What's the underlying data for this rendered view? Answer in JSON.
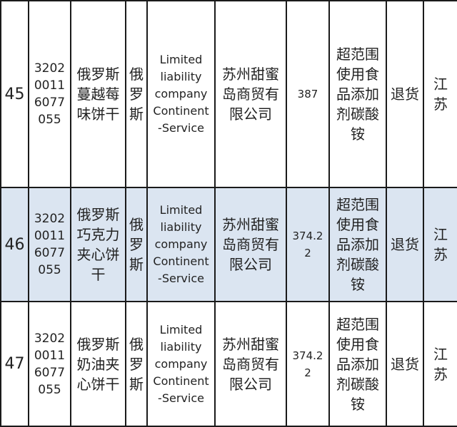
{
  "rows": [
    {
      "no": "45",
      "code": [
        "3202",
        "0011",
        "6077",
        "055"
      ],
      "product": [
        "俄罗斯",
        "蔓越莓",
        "味饼干"
      ],
      "country": [
        "俄",
        "罗",
        "斯"
      ],
      "manufacturer": [
        "Limited",
        "liability",
        "company",
        "Continent",
        "-Service"
      ],
      "importer": [
        "苏州甜蜜",
        "岛商贸有",
        "限公司"
      ],
      "weight": [
        "387"
      ],
      "reason": [
        "超范围",
        "使用食",
        "品添加",
        "剂碳酸",
        "铵"
      ],
      "action": [
        "退货"
      ],
      "port": [
        "江",
        "苏"
      ]
    },
    {
      "no": "46",
      "code": [
        "3202",
        "0011",
        "6077",
        "055"
      ],
      "product": [
        "俄罗斯",
        "巧克力",
        "夹心饼",
        "干"
      ],
      "country": [
        "俄",
        "罗",
        "斯"
      ],
      "manufacturer": [
        "Limited",
        "liability",
        "company",
        "Continent",
        "-Service"
      ],
      "importer": [
        "苏州甜蜜",
        "岛商贸有",
        "限公司"
      ],
      "weight": [
        "374.2",
        "2"
      ],
      "reason": [
        "超范围",
        "使用食",
        "品添加",
        "剂碳酸",
        "铵"
      ],
      "action": [
        "退货"
      ],
      "port": [
        "江",
        "苏"
      ]
    },
    {
      "no": "47",
      "code": [
        "3202",
        "0011",
        "6077",
        "055"
      ],
      "product": [
        "俄罗斯",
        "奶油夹",
        "心饼干"
      ],
      "country": [
        "俄",
        "罗",
        "斯"
      ],
      "manufacturer": [
        "Limited",
        "liability",
        "company",
        "Continent",
        "-Service"
      ],
      "importer": [
        "苏州甜蜜",
        "岛商贸有",
        "限公司"
      ],
      "weight": [
        "374.2",
        "2"
      ],
      "reason": [
        "超范围",
        "使用食",
        "品添加",
        "剂碳酸",
        "铵"
      ],
      "action": [
        "退货"
      ],
      "port": [
        "江",
        "苏"
      ]
    }
  ],
  "colors": {
    "alt_row": "#dbe5f1",
    "border": "#1a1a1a"
  }
}
